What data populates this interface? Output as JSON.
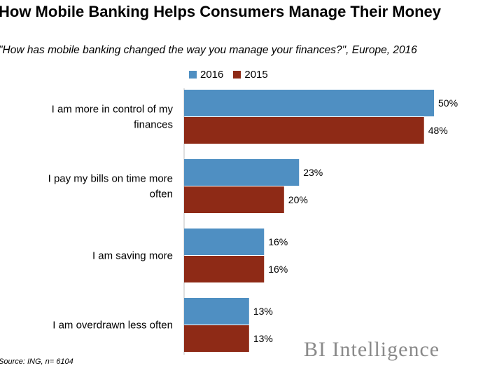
{
  "title": "How Mobile Banking Helps Consumers Manage Their Money",
  "subtitle": "\"How has mobile banking changed the way you manage your finances?\", Europe, 2016",
  "source": "Source: ING, n= 6104",
  "brand": "BI Intelligence",
  "chart_data": {
    "type": "bar",
    "orientation": "horizontal",
    "categories": [
      "I am more in control of my finances",
      "I pay my bills on time more often",
      "I am saving more",
      "I am overdrawn less often"
    ],
    "series": [
      {
        "name": "2016",
        "color": "#4F8FC2",
        "values": [
          50,
          23,
          16,
          13
        ]
      },
      {
        "name": "2015",
        "color": "#8E2A16",
        "values": [
          48,
          20,
          16,
          13
        ]
      }
    ],
    "value_suffix": "%",
    "xlim": [
      0,
      50
    ],
    "grid": false,
    "legend_position": "top"
  }
}
